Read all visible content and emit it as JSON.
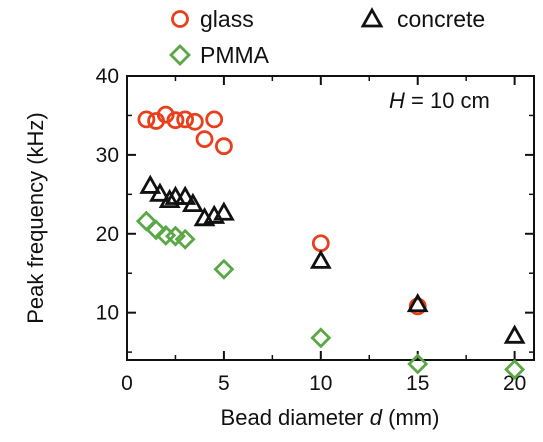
{
  "chart_data": {
    "type": "scatter",
    "xlabel_main": "Bead diameter",
    "xlabel_var": "d",
    "xlabel_unit": "(mm)",
    "ylabel": "Peak frequency (kHz)",
    "xlim": [
      0,
      21
    ],
    "ylim": [
      4,
      40
    ],
    "xticks": [
      0,
      5,
      10,
      15,
      20
    ],
    "yticks": [
      10,
      20,
      30,
      40
    ],
    "grid": false,
    "legend_position": "top",
    "annotation": {
      "var": "H",
      "text": " = 10 cm"
    },
    "series": [
      {
        "name": "glass",
        "marker": "circle",
        "color": "#e8401c",
        "points": [
          {
            "x": 1.0,
            "y": 34.5
          },
          {
            "x": 1.5,
            "y": 34.3
          },
          {
            "x": 2.0,
            "y": 35.1
          },
          {
            "x": 2.5,
            "y": 34.4
          },
          {
            "x": 3.0,
            "y": 34.5
          },
          {
            "x": 3.5,
            "y": 34.2
          },
          {
            "x": 4.0,
            "y": 32.0
          },
          {
            "x": 4.5,
            "y": 34.5
          },
          {
            "x": 5.0,
            "y": 31.1
          },
          {
            "x": 10.0,
            "y": 18.8
          },
          {
            "x": 15.0,
            "y": 10.8
          }
        ]
      },
      {
        "name": "concrete",
        "marker": "triangle",
        "color": "#111111",
        "points": [
          {
            "x": 1.2,
            "y": 26.0
          },
          {
            "x": 1.7,
            "y": 25.0
          },
          {
            "x": 2.2,
            "y": 24.2
          },
          {
            "x": 2.5,
            "y": 24.6
          },
          {
            "x": 3.0,
            "y": 24.6
          },
          {
            "x": 3.4,
            "y": 23.7
          },
          {
            "x": 4.0,
            "y": 21.9
          },
          {
            "x": 4.5,
            "y": 22.2
          },
          {
            "x": 5.0,
            "y": 22.6
          },
          {
            "x": 10.0,
            "y": 16.5
          },
          {
            "x": 15.0,
            "y": 11.0
          },
          {
            "x": 20.0,
            "y": 7.0
          }
        ]
      },
      {
        "name": "PMMA",
        "marker": "diamond",
        "color": "#5aa845",
        "points": [
          {
            "x": 1.0,
            "y": 21.6
          },
          {
            "x": 1.5,
            "y": 20.5
          },
          {
            "x": 2.0,
            "y": 19.8
          },
          {
            "x": 2.5,
            "y": 19.7
          },
          {
            "x": 3.0,
            "y": 19.3
          },
          {
            "x": 5.0,
            "y": 15.5
          },
          {
            "x": 10.0,
            "y": 6.8
          },
          {
            "x": 15.0,
            "y": 3.5
          },
          {
            "x": 20.0,
            "y": 2.8
          }
        ]
      }
    ]
  }
}
